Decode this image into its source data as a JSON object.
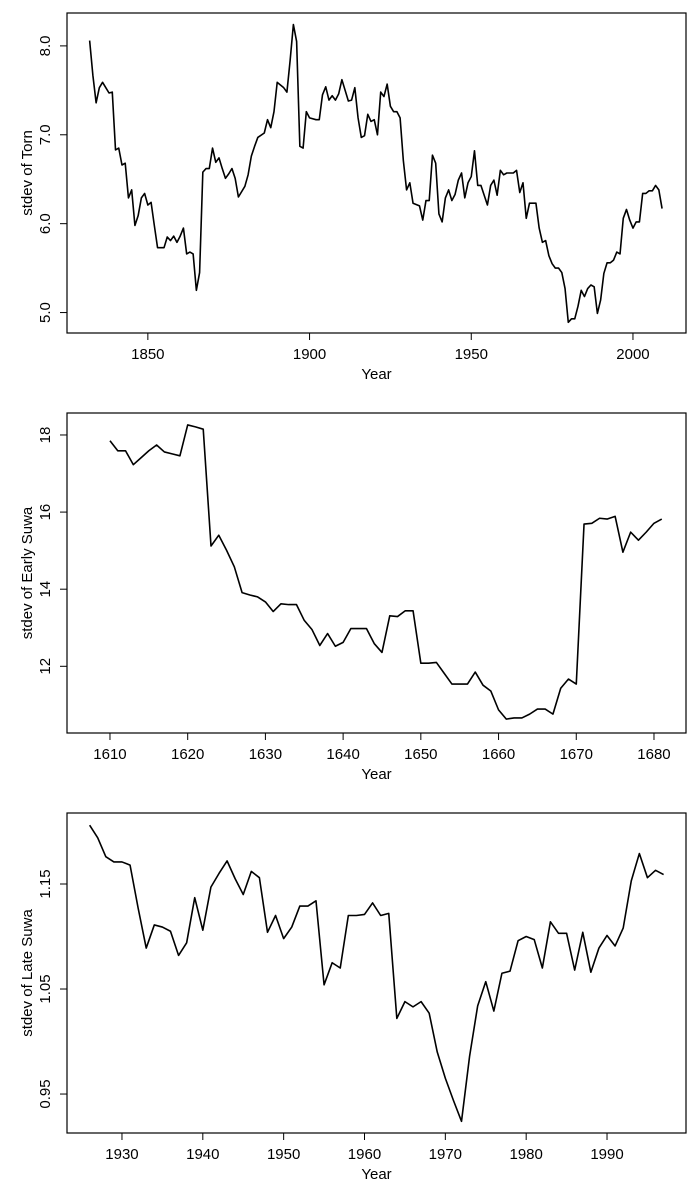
{
  "chart_data": [
    {
      "type": "line",
      "xlabel": "Year",
      "ylabel": "stdev of Torn",
      "color": "#000000",
      "xlim": [
        1825,
        2016.4
      ],
      "ylim": [
        4.77,
        8.37
      ],
      "xticks": [
        1850,
        1900,
        1950,
        2000
      ],
      "yticks": [
        {
          "value": 5,
          "label": "5.0"
        },
        {
          "value": 6,
          "label": "6.0"
        },
        {
          "value": 7,
          "label": "7.0"
        },
        {
          "value": 8,
          "label": "8.0"
        }
      ],
      "x": [
        1832,
        1833,
        1834,
        1835,
        1836,
        1837,
        1838,
        1839,
        1840,
        1841,
        1842,
        1843,
        1844,
        1845,
        1846,
        1847,
        1848,
        1849,
        1850,
        1851,
        1852,
        1853,
        1855,
        1856,
        1857,
        1858,
        1859,
        1860,
        1861,
        1862,
        1863,
        1864,
        1865,
        1866,
        1867,
        1868,
        1869,
        1870,
        1871,
        1872,
        1873,
        1874,
        1875,
        1876,
        1877,
        1878,
        1880,
        1881,
        1882,
        1883,
        1884,
        1886,
        1887,
        1888,
        1889,
        1890,
        1892,
        1893,
        1894,
        1895,
        1896,
        1897,
        1898,
        1899,
        1900,
        1902,
        1903,
        1904,
        1905,
        1906,
        1907,
        1908,
        1909,
        1910,
        1912,
        1913,
        1914,
        1915,
        1916,
        1917,
        1918,
        1919,
        1920,
        1921,
        1922,
        1923,
        1924,
        1925,
        1926,
        1927,
        1928,
        1929,
        1930,
        1931,
        1932,
        1934,
        1935,
        1936,
        1937,
        1938,
        1939,
        1940,
        1941,
        1942,
        1943,
        1944,
        1945,
        1946,
        1947,
        1948,
        1949,
        1950,
        1951,
        1952,
        1953,
        1954,
        1955,
        1956,
        1957,
        1958,
        1959,
        1960,
        1961,
        1962,
        1963,
        1964,
        1965,
        1966,
        1967,
        1968,
        1969,
        1970,
        1971,
        1972,
        1973,
        1974,
        1975,
        1976,
        1977,
        1978,
        1979,
        1980,
        1981,
        1982,
        1983,
        1984,
        1985,
        1986,
        1987,
        1988,
        1989,
        1990,
        1991,
        1992,
        1993,
        1994,
        1995,
        1996,
        1997,
        1998,
        1999,
        2000,
        2001,
        2002,
        2003,
        2004,
        2005,
        2006,
        2007,
        2008,
        2009
      ],
      "values": [
        8.06,
        7.67,
        7.36,
        7.53,
        7.59,
        7.53,
        7.47,
        7.48,
        6.83,
        6.85,
        6.66,
        6.68,
        6.29,
        6.38,
        5.98,
        6.09,
        6.29,
        6.34,
        6.21,
        6.24,
        5.98,
        5.73,
        5.73,
        5.85,
        5.81,
        5.86,
        5.79,
        5.86,
        5.95,
        5.66,
        5.68,
        5.66,
        5.25,
        5.45,
        6.58,
        6.62,
        6.62,
        6.85,
        6.69,
        6.74,
        6.62,
        6.51,
        6.56,
        6.62,
        6.51,
        6.3,
        6.42,
        6.55,
        6.76,
        6.87,
        6.97,
        7.02,
        7.17,
        7.08,
        7.26,
        7.59,
        7.53,
        7.48,
        7.84,
        8.24,
        8.05,
        6.87,
        6.85,
        7.26,
        7.19,
        7.17,
        7.17,
        7.45,
        7.54,
        7.39,
        7.44,
        7.39,
        7.46,
        7.62,
        7.38,
        7.39,
        7.53,
        7.19,
        6.97,
        6.99,
        7.23,
        7.15,
        7.17,
        7.0,
        7.48,
        7.43,
        7.57,
        7.32,
        7.26,
        7.26,
        7.19,
        6.71,
        6.38,
        6.46,
        6.23,
        6.2,
        6.04,
        6.26,
        6.26,
        6.77,
        6.68,
        6.11,
        6.02,
        6.29,
        6.38,
        6.26,
        6.33,
        6.49,
        6.57,
        6.29,
        6.46,
        6.53,
        6.82,
        6.43,
        6.43,
        6.32,
        6.21,
        6.43,
        6.49,
        6.32,
        6.6,
        6.55,
        6.57,
        6.57,
        6.57,
        6.6,
        6.35,
        6.46,
        6.06,
        6.23,
        6.23,
        6.23,
        5.95,
        5.79,
        5.81,
        5.64,
        5.55,
        5.5,
        5.5,
        5.45,
        5.27,
        4.89,
        4.93,
        4.93,
        5.07,
        5.25,
        5.18,
        5.27,
        5.31,
        5.29,
        4.99,
        5.14,
        5.44,
        5.56,
        5.56,
        5.59,
        5.68,
        5.66,
        6.06,
        6.16,
        6.04,
        5.95,
        6.02,
        6.02,
        6.34,
        6.34,
        6.37,
        6.37,
        6.43,
        6.38,
        6.17
      ]
    },
    {
      "type": "line",
      "xlabel": "Year",
      "ylabel": "stdev of Early Suwa",
      "color": "#000000",
      "xlim": [
        1604.47,
        1684.12
      ],
      "ylim": [
        10.27,
        18.57
      ],
      "xticks": [
        1610,
        1620,
        1630,
        1640,
        1650,
        1660,
        1670,
        1680
      ],
      "yticks": [
        12,
        14,
        16,
        18
      ],
      "x": [
        1610,
        1611,
        1612,
        1613,
        1614,
        1615,
        1616,
        1617,
        1618,
        1619,
        1620,
        1621,
        1622,
        1623,
        1624,
        1625,
        1626,
        1627,
        1628,
        1629,
        1630,
        1631,
        1632,
        1633,
        1634,
        1635,
        1636,
        1637,
        1638,
        1639,
        1640,
        1641,
        1642,
        1643,
        1644,
        1645,
        1646,
        1647,
        1648,
        1649,
        1650,
        1651,
        1652,
        1653,
        1654,
        1655,
        1656,
        1657,
        1658,
        1659,
        1660,
        1661,
        1662,
        1663,
        1664,
        1665,
        1666,
        1667,
        1668,
        1669,
        1670,
        1671,
        1672,
        1673,
        1674,
        1675,
        1676,
        1677,
        1678,
        1679,
        1680,
        1681
      ],
      "values": [
        17.85,
        17.59,
        17.59,
        17.23,
        17.41,
        17.59,
        17.74,
        17.56,
        17.51,
        17.46,
        18.26,
        18.21,
        18.15,
        15.12,
        15.4,
        15.01,
        14.58,
        13.91,
        13.85,
        13.8,
        13.67,
        13.42,
        13.62,
        13.6,
        13.6,
        13.19,
        12.95,
        12.54,
        12.85,
        12.52,
        12.62,
        12.98,
        12.98,
        12.98,
        12.59,
        12.36,
        13.31,
        13.29,
        13.44,
        13.44,
        12.08,
        12.08,
        12.1,
        11.82,
        11.54,
        11.54,
        11.54,
        11.85,
        11.51,
        11.36,
        10.87,
        10.63,
        10.66,
        10.66,
        10.76,
        10.89,
        10.89,
        10.76,
        11.43,
        11.67,
        11.54,
        15.69,
        15.71,
        15.84,
        15.82,
        15.89,
        14.96,
        15.48,
        15.27,
        15.48,
        15.71,
        15.82
      ]
    },
    {
      "type": "line",
      "xlabel": "Year",
      "ylabel": "stdev of Late Suwa",
      "color": "#000000",
      "xlim": [
        1923.2,
        1999.77
      ],
      "ylim": [
        0.9129,
        1.2176
      ],
      "xticks": [
        1930,
        1940,
        1950,
        1960,
        1970,
        1980,
        1990
      ],
      "yticks": [
        0.95,
        1.05,
        1.15
      ],
      "x": [
        1926,
        1927,
        1928,
        1929,
        1930,
        1931,
        1932,
        1933,
        1934,
        1935,
        1936,
        1937,
        1938,
        1939,
        1940,
        1941,
        1942,
        1943,
        1944,
        1945,
        1946,
        1947,
        1948,
        1949,
        1950,
        1951,
        1952,
        1953,
        1954,
        1955,
        1956,
        1957,
        1958,
        1959,
        1960,
        1961,
        1962,
        1963,
        1964,
        1965,
        1966,
        1967,
        1968,
        1969,
        1970,
        1971,
        1972,
        1973,
        1974,
        1975,
        1976,
        1977,
        1978,
        1979,
        1980,
        1981,
        1982,
        1983,
        1984,
        1985,
        1986,
        1987,
        1988,
        1989,
        1990,
        1991,
        1992,
        1993,
        1994,
        1995,
        1996,
        1997
      ],
      "values": [
        1.206,
        1.194,
        1.176,
        1.171,
        1.171,
        1.168,
        1.127,
        1.089,
        1.111,
        1.109,
        1.105,
        1.082,
        1.094,
        1.137,
        1.106,
        1.147,
        1.16,
        1.172,
        1.155,
        1.14,
        1.162,
        1.156,
        1.104,
        1.12,
        1.098,
        1.109,
        1.129,
        1.129,
        1.134,
        1.054,
        1.075,
        1.07,
        1.12,
        1.12,
        1.121,
        1.132,
        1.12,
        1.122,
        1.022,
        1.038,
        1.033,
        1.038,
        1.027,
        0.99,
        0.965,
        0.944,
        0.924,
        0.986,
        1.034,
        1.057,
        1.029,
        1.065,
        1.067,
        1.096,
        1.1,
        1.097,
        1.07,
        1.114,
        1.103,
        1.103,
        1.068,
        1.104,
        1.066,
        1.089,
        1.101,
        1.091,
        1.108,
        1.153,
        1.179,
        1.156,
        1.163,
        1.159
      ]
    }
  ]
}
